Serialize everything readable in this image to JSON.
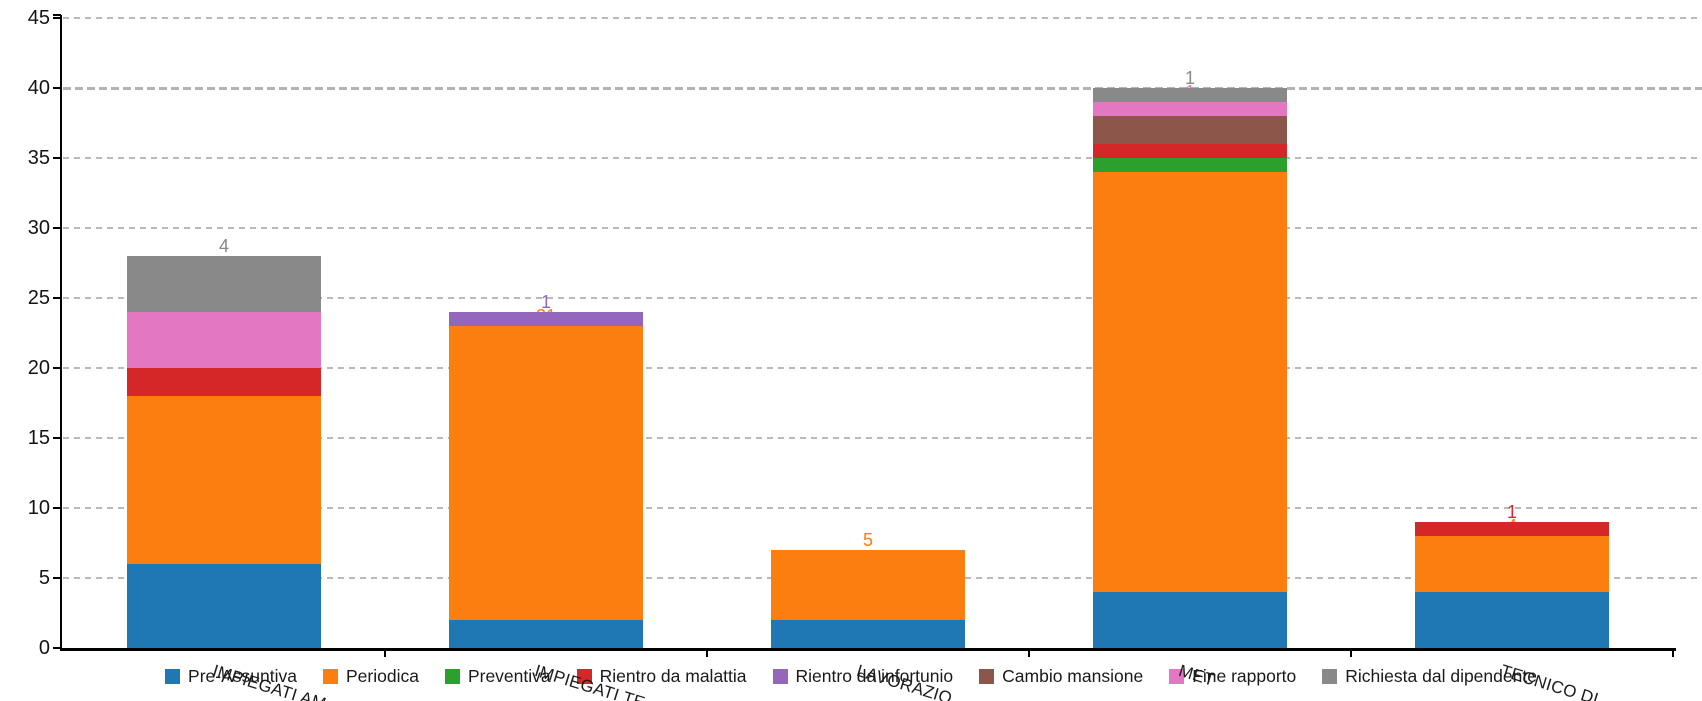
{
  "chart_data": {
    "type": "bar",
    "stacked": true,
    "orientation": "vertical",
    "title": "",
    "xlabel": "",
    "ylabel": "",
    "categories": [
      "IMPIEGATI AM",
      "IMPIEGATI TE",
      "LAVORAZIO",
      "MET",
      "TECNICO DI"
    ],
    "series": [
      {
        "name": "Pre-Assuntiva",
        "color": "#1F77B4",
        "values": [
          6,
          2,
          2,
          4,
          4
        ]
      },
      {
        "name": "Periodica",
        "color": "#FC7E0F",
        "values": [
          12,
          21,
          5,
          30,
          4
        ]
      },
      {
        "name": "Preventiva",
        "color": "#2CA02C",
        "values": [
          0,
          0,
          0,
          1,
          0
        ]
      },
      {
        "name": "Rientro da malattia",
        "color": "#D62728",
        "values": [
          2,
          0,
          0,
          1,
          1
        ]
      },
      {
        "name": "Rientro da infortunio",
        "color": "#9467BD",
        "values": [
          0,
          1,
          0,
          0,
          0
        ]
      },
      {
        "name": "Cambio mansione",
        "color": "#8C564B",
        "values": [
          0,
          0,
          0,
          2,
          0
        ]
      },
      {
        "name": "Fine rapporto",
        "color": "#E377C2",
        "values": [
          4,
          0,
          0,
          1,
          0
        ]
      },
      {
        "name": "Richiesta dal dipendente",
        "color": "#898989",
        "values": [
          4,
          0,
          0,
          1,
          0
        ]
      }
    ],
    "bar_totals": [
      28,
      24,
      7,
      40,
      9
    ],
    "y_ticks": [
      0,
      5,
      10,
      15,
      20,
      25,
      30,
      35,
      40,
      45
    ],
    "ylim": [
      0,
      45
    ],
    "grid": "dashed-horizontal",
    "emphasized_gridline": 40,
    "data_labels": "above-each-segment-in-series-color",
    "legend_position": "bottom",
    "category_label_rotation_deg": 17,
    "axis_color": "#000000",
    "gridline_color": "#b9b9b9",
    "background_color": "#ffffff"
  }
}
